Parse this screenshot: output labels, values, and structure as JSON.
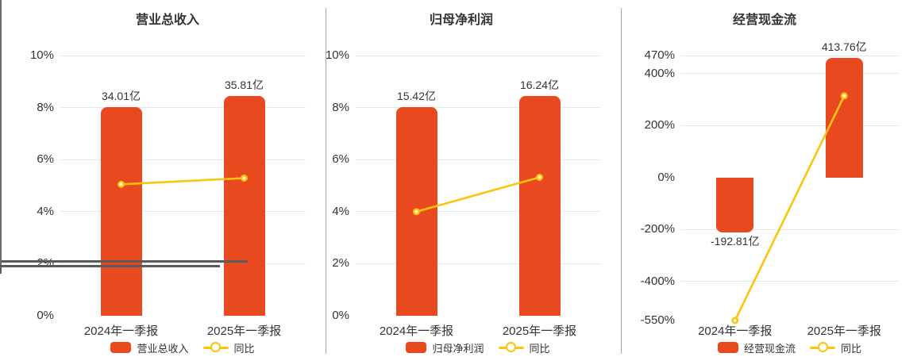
{
  "colors": {
    "bar": "#e8491e",
    "line": "#fbc40f",
    "marker_fill": "#ffffff",
    "grid": "#e2e8f4",
    "axis": "#6b6b6b",
    "zero_line": "#5a5a5a",
    "divider": "#aaaaaa",
    "text": "#333333",
    "background": "#ffffff"
  },
  "chart_data": [
    {
      "type": "bar+line",
      "title": "营业总收入",
      "categories": [
        "2024年一季报",
        "2025年一季报"
      ],
      "bar_series": {
        "name": "营业总收入",
        "unit": "亿",
        "values": [
          34.01,
          35.81
        ],
        "labels": [
          "34.01亿",
          "35.81亿"
        ],
        "display_axis_pct": [
          8.03,
          8.45
        ]
      },
      "line_series": {
        "name": "同比",
        "unit": "%",
        "values": [
          5.05,
          5.29
        ]
      },
      "y_axis": {
        "min": 0,
        "max": 10,
        "ticks": [
          {
            "label": "10%",
            "value": 10
          },
          {
            "label": "8%",
            "value": 8
          },
          {
            "label": "6%",
            "value": 6
          },
          {
            "label": "4%",
            "value": 4
          },
          {
            "label": "2%",
            "value": 2
          },
          {
            "label": "0%",
            "value": 0
          }
        ]
      },
      "legend": [
        "营业总收入",
        "同比"
      ]
    },
    {
      "type": "bar+line",
      "title": "归母净利润",
      "categories": [
        "2024年一季报",
        "2025年一季报"
      ],
      "bar_series": {
        "name": "归母净利润",
        "unit": "亿",
        "values": [
          15.42,
          16.24
        ],
        "labels": [
          "15.42亿",
          "16.24亿"
        ],
        "display_axis_pct": [
          8.03,
          8.45
        ]
      },
      "line_series": {
        "name": "同比",
        "unit": "%",
        "values": [
          4.0,
          5.32
        ]
      },
      "y_axis": {
        "min": 0,
        "max": 10,
        "ticks": [
          {
            "label": "10%",
            "value": 10
          },
          {
            "label": "8%",
            "value": 8
          },
          {
            "label": "6%",
            "value": 6
          },
          {
            "label": "4%",
            "value": 4
          },
          {
            "label": "2%",
            "value": 2
          },
          {
            "label": "0%",
            "value": 0
          }
        ]
      },
      "legend": [
        "归母净利润",
        "同比"
      ]
    },
    {
      "type": "bar+line",
      "title": "经营现金流",
      "categories": [
        "2024年一季报",
        "2025年一季报"
      ],
      "bar_series": {
        "name": "经营现金流",
        "unit": "亿",
        "values": [
          -192.81,
          413.76
        ],
        "labels": [
          "-192.81亿",
          "413.76亿"
        ],
        "display_axis_pct": [
          -210,
          461
        ]
      },
      "line_series": {
        "name": "同比",
        "unit": "%",
        "values": [
          -550,
          314.6
        ]
      },
      "y_axis": {
        "min": -550,
        "max": 470,
        "ticks": [
          {
            "label": "470%",
            "value": 470
          },
          {
            "label": "400%",
            "value": 400
          },
          {
            "label": "200%",
            "value": 200
          },
          {
            "label": "0%",
            "value": 0
          },
          {
            "label": "-200%",
            "value": -200
          },
          {
            "label": "-400%",
            "value": -400
          },
          {
            "label": "-550%",
            "value": -550
          }
        ]
      },
      "legend": [
        "经营现金流",
        "同比"
      ]
    }
  ]
}
